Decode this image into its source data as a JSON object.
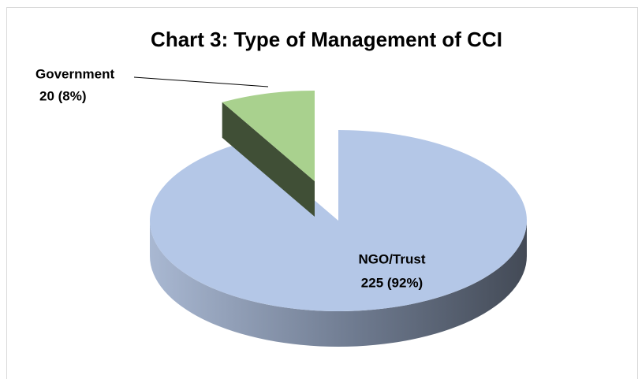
{
  "chart_data": {
    "type": "pie",
    "title": "Chart 3: Type of Management of CCI",
    "categories": [
      "NGO/Trust",
      "Government"
    ],
    "values": [
      225,
      20
    ],
    "value_labels": [
      "225 (92%)",
      "20 (8%)"
    ],
    "colors": [
      "#b4c7e7",
      "#a9d18e"
    ]
  }
}
